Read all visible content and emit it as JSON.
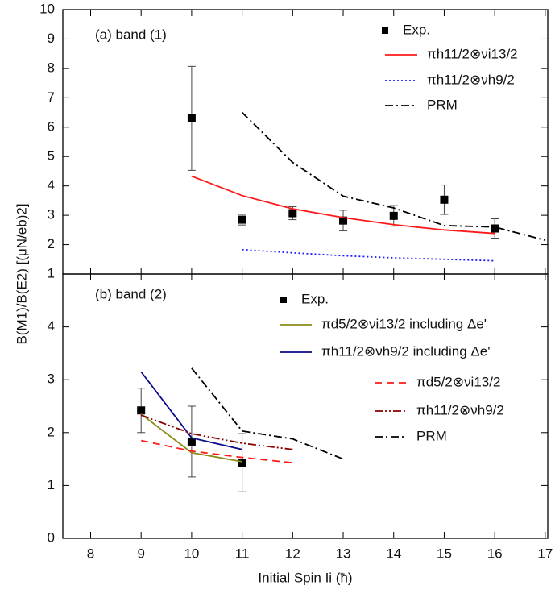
{
  "chart_data": [
    {
      "type": "line",
      "title": "(a) band (1)",
      "ylabel": "B(M1)/B(E2) [(μN/eb)2]",
      "xlim": [
        7.45,
        17.05
      ],
      "xticks": [
        8,
        9,
        10,
        11,
        12,
        13,
        14,
        15,
        16,
        17
      ],
      "ylim": [
        1,
        10
      ],
      "yticks": [
        1,
        2,
        3,
        4,
        5,
        6,
        7,
        8,
        9,
        10
      ],
      "series": [
        {
          "name": "Exp.",
          "mode": "markers",
          "color": "#000000",
          "x": [
            10,
            11,
            12,
            13,
            14,
            15,
            16
          ],
          "values": [
            6.3,
            2.85,
            3.07,
            2.82,
            2.98,
            3.53,
            2.55
          ],
          "errors": [
            1.77,
            0.18,
            0.22,
            0.35,
            0.35,
            0.5,
            0.33
          ]
        },
        {
          "name": "πh11/2⊗νi13/2",
          "mode": "lines",
          "style": "solid",
          "color": "#ff1a1a",
          "x": [
            10,
            11,
            12,
            13,
            14,
            15,
            16
          ],
          "values": [
            4.33,
            3.67,
            3.22,
            2.92,
            2.68,
            2.5,
            2.38
          ]
        },
        {
          "name": "πh11/2⊗νh9/2",
          "mode": "lines",
          "style": "dotted",
          "color": "#1a1aff",
          "x": [
            11,
            12,
            13,
            14,
            15,
            16
          ],
          "values": [
            1.83,
            1.72,
            1.62,
            1.55,
            1.5,
            1.45
          ]
        },
        {
          "name": "PRM",
          "mode": "lines",
          "style": "dashdot",
          "color": "#000000",
          "x": [
            11,
            12,
            13,
            14,
            15,
            16,
            17
          ],
          "values": [
            6.5,
            4.8,
            3.65,
            3.25,
            2.65,
            2.6,
            2.15
          ]
        }
      ]
    },
    {
      "type": "line",
      "title": "(b) band (2)",
      "xlabel": "Initial Spin Ii (ħ)",
      "xlim": [
        7.45,
        17.05
      ],
      "xticks": [
        8,
        9,
        10,
        11,
        12,
        13,
        14,
        15,
        16,
        17
      ],
      "ylim": [
        0,
        5
      ],
      "yticks": [
        0,
        1,
        2,
        3,
        4
      ],
      "series": [
        {
          "name": "Exp.",
          "mode": "markers",
          "color": "#000000",
          "x": [
            9,
            10,
            11
          ],
          "values": [
            2.42,
            1.83,
            1.43
          ],
          "errors": [
            0.42,
            0.67,
            0.55
          ]
        },
        {
          "name": "πd5/2⊗νi13/2 including Δe'",
          "mode": "lines",
          "style": "solid",
          "color": "#8b8b1a",
          "x": [
            9,
            10,
            11
          ],
          "values": [
            2.35,
            1.62,
            1.45
          ]
        },
        {
          "name": "πh11/2⊗νh9/2 including Δe'",
          "mode": "lines",
          "style": "solid",
          "color": "#0a0a8c",
          "x": [
            9,
            10,
            11
          ],
          "values": [
            3.15,
            1.9,
            1.68
          ]
        },
        {
          "name": "πd5/2⊗νi13/2",
          "mode": "lines",
          "style": "dashed",
          "color": "#ff1a1a",
          "x": [
            9,
            10,
            11,
            12
          ],
          "values": [
            1.85,
            1.65,
            1.53,
            1.43
          ]
        },
        {
          "name": "πh11/2⊗νh9/2",
          "mode": "lines",
          "style": "dashdotdot",
          "color": "#8b0000",
          "x": [
            9,
            10,
            11,
            12
          ],
          "values": [
            2.33,
            1.98,
            1.8,
            1.68
          ]
        },
        {
          "name": "PRM",
          "mode": "lines",
          "style": "dashdot",
          "color": "#000000",
          "x": [
            10,
            11,
            12,
            13
          ],
          "values": [
            3.22,
            2.03,
            1.88,
            1.5
          ]
        }
      ]
    }
  ]
}
